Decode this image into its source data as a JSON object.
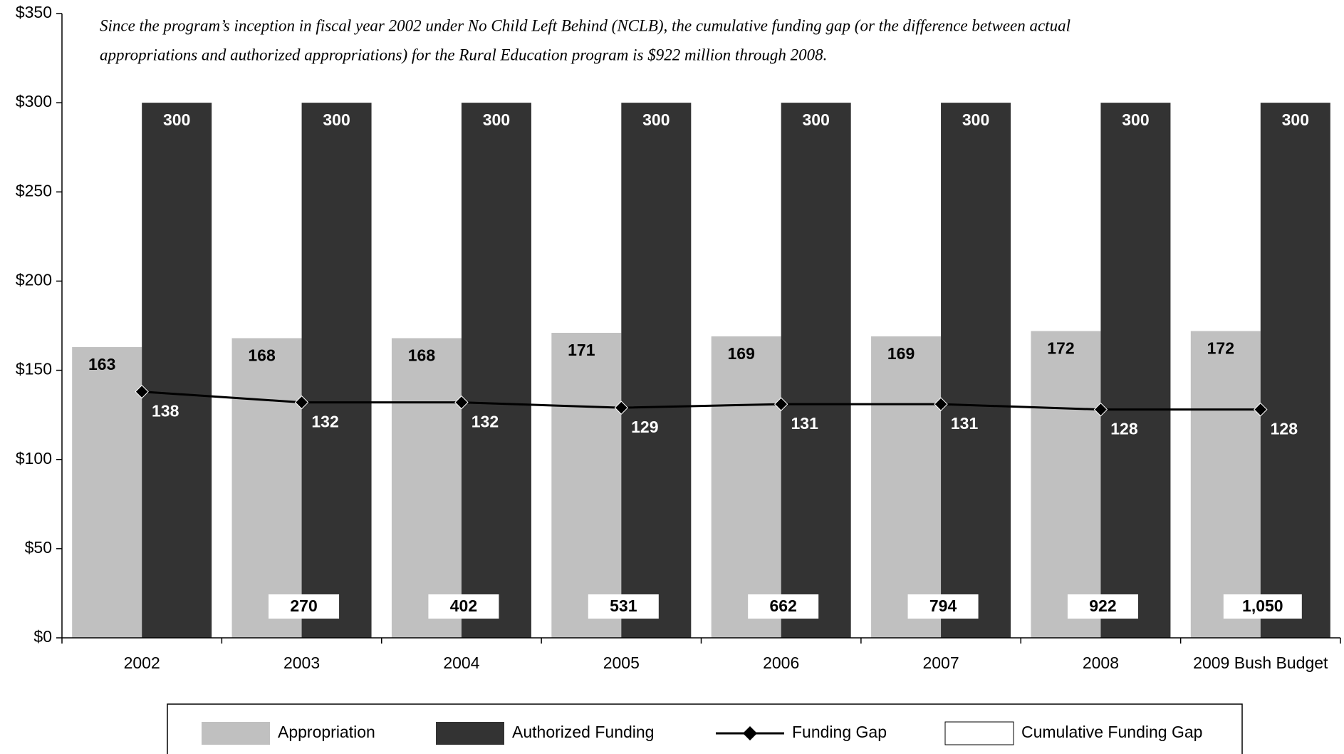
{
  "chart_data": {
    "type": "bar",
    "annotation": [
      "Since the program’s inception in fiscal year 2002 under No Child Left Behind (NCLB), the cumulative funding gap (or the difference between actual",
      "appropriations and authorized appropriations) for the Rural Education program is $922 million through 2008."
    ],
    "categories": [
      "2002",
      "2003",
      "2004",
      "2005",
      "2006",
      "2007",
      "2008",
      "2009 Bush Budget"
    ],
    "series": [
      {
        "name": "Appropriation",
        "color": "#c0c0c0",
        "values": [
          163,
          168,
          168,
          171,
          169,
          169,
          172,
          172
        ]
      },
      {
        "name": "Authorized Funding",
        "color": "#333333",
        "values": [
          300,
          300,
          300,
          300,
          300,
          300,
          300,
          300
        ]
      },
      {
        "name": "Funding Gap",
        "type": "line",
        "color": "#000000",
        "values": [
          138,
          132,
          132,
          129,
          131,
          131,
          128,
          128
        ]
      },
      {
        "name": "Cumulative Funding Gap",
        "type": "label-box",
        "color": "#ffffff",
        "values": [
          null,
          270,
          402,
          531,
          662,
          794,
          922,
          1050
        ],
        "value_labels": [
          null,
          "270",
          "402",
          "531",
          "662",
          "794",
          "922",
          "1,050"
        ]
      }
    ],
    "ylim": [
      0,
      350
    ],
    "yticks": [
      {
        "value": 0,
        "label": "$0"
      },
      {
        "value": 50,
        "label": "$50"
      },
      {
        "value": 100,
        "label": "$100"
      },
      {
        "value": 150,
        "label": "$150"
      },
      {
        "value": 200,
        "label": "$200"
      },
      {
        "value": 250,
        "label": "$250"
      },
      {
        "value": 300,
        "label": "$300"
      },
      {
        "value": 350,
        "label": "$350"
      }
    ],
    "legend": "bottom"
  }
}
